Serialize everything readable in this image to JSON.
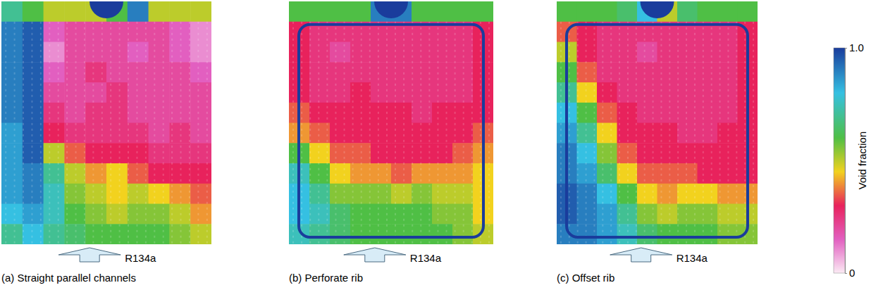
{
  "chart_data": {
    "type": "heatmap",
    "panels": [
      {
        "title": "(a) Straight parallel channels",
        "inlet_label": "R134a",
        "cells": [
          [
            0.7,
            0.6,
            0.5,
            0.5,
            0.5,
            0.6,
            0.9,
            0.5,
            0.5,
            0.5
          ],
          [
            0.9,
            0.95,
            0.15,
            0.2,
            0.2,
            0.2,
            0.2,
            0.2,
            0.15,
            0.1
          ],
          [
            0.9,
            0.95,
            0.1,
            0.2,
            0.2,
            0.2,
            0.15,
            0.2,
            0.15,
            0.1
          ],
          [
            0.9,
            0.95,
            0.15,
            0.2,
            0.25,
            0.2,
            0.2,
            0.2,
            0.2,
            0.15
          ],
          [
            0.9,
            0.95,
            0.2,
            0.2,
            0.2,
            0.25,
            0.2,
            0.2,
            0.2,
            0.2
          ],
          [
            0.9,
            0.95,
            0.25,
            0.2,
            0.25,
            0.25,
            0.2,
            0.2,
            0.2,
            0.2
          ],
          [
            0.85,
            0.95,
            0.3,
            0.25,
            0.25,
            0.25,
            0.25,
            0.2,
            0.25,
            0.2
          ],
          [
            0.85,
            0.95,
            0.5,
            0.35,
            0.3,
            0.3,
            0.3,
            0.25,
            0.25,
            0.25
          ],
          [
            0.85,
            0.9,
            0.7,
            0.5,
            0.4,
            0.45,
            0.35,
            0.3,
            0.3,
            0.3
          ],
          [
            0.85,
            0.9,
            0.75,
            0.55,
            0.5,
            0.45,
            0.5,
            0.45,
            0.4,
            0.35
          ],
          [
            0.8,
            0.85,
            0.75,
            0.6,
            0.55,
            0.5,
            0.55,
            0.55,
            0.5,
            0.4
          ],
          [
            0.7,
            0.8,
            0.7,
            0.65,
            0.6,
            0.6,
            0.6,
            0.6,
            0.55,
            0.5
          ]
        ]
      },
      {
        "title": "(b) Perforate rib",
        "inlet_label": "R134a",
        "cells": [
          [
            0.6,
            0.6,
            0.6,
            0.6,
            0.9,
            0.9,
            0.6,
            0.6,
            0.6,
            0.6
          ],
          [
            0.3,
            0.25,
            0.25,
            0.25,
            0.25,
            0.25,
            0.25,
            0.25,
            0.25,
            0.3
          ],
          [
            0.3,
            0.25,
            0.2,
            0.25,
            0.25,
            0.25,
            0.25,
            0.25,
            0.25,
            0.3
          ],
          [
            0.3,
            0.25,
            0.25,
            0.25,
            0.25,
            0.25,
            0.25,
            0.25,
            0.25,
            0.3
          ],
          [
            0.3,
            0.25,
            0.25,
            0.3,
            0.25,
            0.25,
            0.25,
            0.25,
            0.25,
            0.3
          ],
          [
            0.35,
            0.3,
            0.3,
            0.3,
            0.3,
            0.3,
            0.25,
            0.3,
            0.3,
            0.3
          ],
          [
            0.4,
            0.35,
            0.3,
            0.3,
            0.3,
            0.3,
            0.3,
            0.3,
            0.3,
            0.35
          ],
          [
            0.6,
            0.45,
            0.35,
            0.35,
            0.3,
            0.3,
            0.3,
            0.3,
            0.35,
            0.4
          ],
          [
            0.75,
            0.6,
            0.45,
            0.4,
            0.4,
            0.35,
            0.4,
            0.4,
            0.4,
            0.45
          ],
          [
            0.8,
            0.7,
            0.55,
            0.55,
            0.55,
            0.5,
            0.55,
            0.5,
            0.5,
            0.45
          ],
          [
            0.8,
            0.75,
            0.65,
            0.6,
            0.6,
            0.6,
            0.6,
            0.55,
            0.55,
            0.45
          ],
          [
            0.75,
            0.7,
            0.65,
            0.6,
            0.6,
            0.6,
            0.6,
            0.6,
            0.55,
            0.5
          ]
        ]
      },
      {
        "title": "(c) Offset rib",
        "inlet_label": "R134a",
        "cells": [
          [
            0.6,
            0.6,
            0.6,
            0.65,
            0.8,
            0.5,
            0.65,
            0.6,
            0.6,
            0.6
          ],
          [
            0.35,
            0.3,
            0.25,
            0.25,
            0.25,
            0.25,
            0.25,
            0.25,
            0.25,
            0.3
          ],
          [
            0.5,
            0.3,
            0.25,
            0.25,
            0.2,
            0.25,
            0.25,
            0.25,
            0.25,
            0.3
          ],
          [
            0.6,
            0.35,
            0.25,
            0.25,
            0.25,
            0.25,
            0.25,
            0.25,
            0.25,
            0.3
          ],
          [
            0.7,
            0.45,
            0.3,
            0.25,
            0.25,
            0.25,
            0.25,
            0.25,
            0.25,
            0.3
          ],
          [
            0.8,
            0.6,
            0.35,
            0.3,
            0.25,
            0.25,
            0.25,
            0.25,
            0.25,
            0.3
          ],
          [
            0.85,
            0.7,
            0.45,
            0.3,
            0.3,
            0.3,
            0.25,
            0.25,
            0.3,
            0.3
          ],
          [
            0.9,
            0.8,
            0.55,
            0.35,
            0.3,
            0.3,
            0.3,
            0.3,
            0.3,
            0.3
          ],
          [
            0.9,
            0.85,
            0.65,
            0.45,
            0.35,
            0.35,
            0.35,
            0.3,
            0.3,
            0.3
          ],
          [
            0.95,
            0.9,
            0.8,
            0.6,
            0.45,
            0.4,
            0.45,
            0.45,
            0.4,
            0.4
          ],
          [
            0.95,
            0.9,
            0.85,
            0.7,
            0.55,
            0.5,
            0.55,
            0.55,
            0.5,
            0.5
          ],
          [
            0.9,
            0.9,
            0.85,
            0.75,
            0.65,
            0.6,
            0.6,
            0.6,
            0.55,
            0.55
          ]
        ]
      }
    ],
    "colorbar": {
      "label": "Void fraction",
      "range": [
        0,
        1
      ],
      "ticks": [
        {
          "value": 1,
          "label": "1.0"
        },
        0
      ]
    }
  }
}
